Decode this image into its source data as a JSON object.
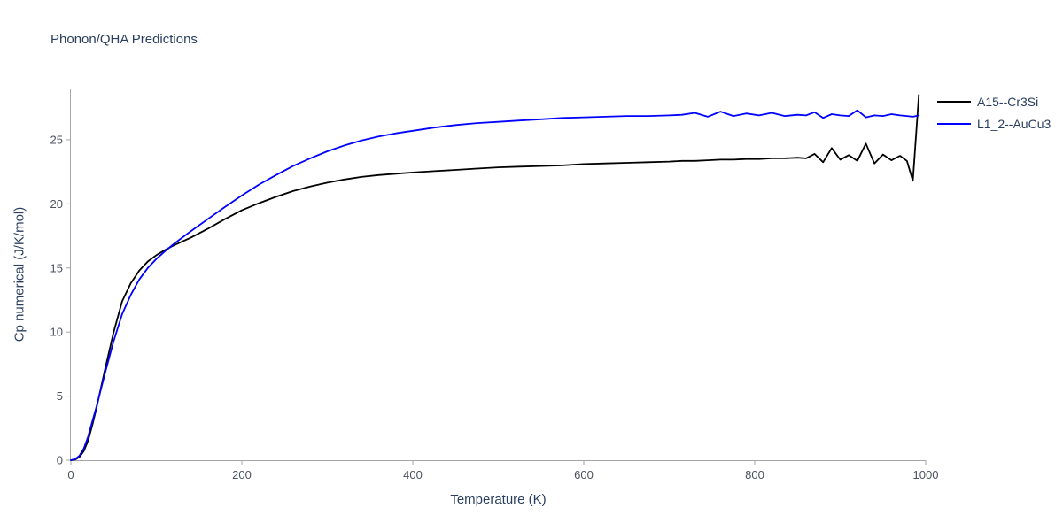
{
  "page": {
    "title": "Phonon/QHA Predictions"
  },
  "chart_data": {
    "type": "line",
    "title": "Phonon/QHA Predictions",
    "xlabel": "Temperature (K)",
    "ylabel": "Cp numerical (J/K/mol)",
    "xlim": [
      0,
      1000
    ],
    "ylim": [
      0,
      29
    ],
    "x_ticks": [
      0,
      200,
      400,
      600,
      800,
      1000
    ],
    "y_ticks": [
      0,
      5,
      10,
      15,
      20,
      25
    ],
    "grid": false,
    "legend_position": "top-right-outside",
    "colors": {
      "axis": "#a6a6a6",
      "tick_text": "#4a5260",
      "title_text": "#2a3f5f",
      "background": "#ffffff"
    },
    "series": [
      {
        "name": "A15--Cr3Si",
        "color": "#000000",
        "x": [
          0,
          5,
          10,
          15,
          20,
          25,
          30,
          35,
          40,
          50,
          60,
          70,
          80,
          90,
          100,
          110,
          120,
          130,
          140,
          160,
          180,
          200,
          220,
          240,
          260,
          280,
          300,
          320,
          340,
          360,
          380,
          400,
          425,
          450,
          475,
          500,
          525,
          550,
          575,
          600,
          625,
          650,
          675,
          700,
          715,
          730,
          745,
          760,
          775,
          790,
          805,
          820,
          835,
          850,
          860,
          870,
          880,
          890,
          900,
          910,
          920,
          930,
          940,
          950,
          960,
          970,
          978,
          985,
          992
        ],
        "y": [
          0,
          0.05,
          0.25,
          0.7,
          1.5,
          2.7,
          4.1,
          5.6,
          7.1,
          10.0,
          12.4,
          13.8,
          14.8,
          15.5,
          16.0,
          16.4,
          16.75,
          17.05,
          17.35,
          18.05,
          18.8,
          19.5,
          20.05,
          20.55,
          21.0,
          21.35,
          21.65,
          21.9,
          22.1,
          22.25,
          22.35,
          22.45,
          22.55,
          22.65,
          22.75,
          22.85,
          22.9,
          22.95,
          23.0,
          23.1,
          23.15,
          23.2,
          23.25,
          23.3,
          23.35,
          23.35,
          23.4,
          23.45,
          23.45,
          23.5,
          23.5,
          23.55,
          23.55,
          23.6,
          23.55,
          23.9,
          23.25,
          24.35,
          23.45,
          23.8,
          23.35,
          24.7,
          23.15,
          23.85,
          23.4,
          23.75,
          23.35,
          21.8,
          28.5
        ]
      },
      {
        "name": "L1_2--AuCu3",
        "color": "#0000ff",
        "x": [
          0,
          5,
          10,
          15,
          20,
          25,
          30,
          35,
          40,
          50,
          60,
          70,
          80,
          90,
          100,
          110,
          120,
          130,
          140,
          160,
          180,
          200,
          220,
          240,
          260,
          280,
          300,
          320,
          340,
          360,
          380,
          400,
          425,
          450,
          475,
          500,
          525,
          550,
          575,
          600,
          625,
          650,
          675,
          700,
          715,
          730,
          745,
          760,
          775,
          790,
          805,
          820,
          835,
          850,
          860,
          870,
          880,
          890,
          900,
          910,
          920,
          930,
          940,
          950,
          960,
          970,
          978,
          985,
          992
        ],
        "y": [
          0,
          0.08,
          0.35,
          0.9,
          1.8,
          3.0,
          4.2,
          5.5,
          6.8,
          9.3,
          11.4,
          12.9,
          14.1,
          15.0,
          15.7,
          16.3,
          16.85,
          17.35,
          17.85,
          18.8,
          19.75,
          20.65,
          21.5,
          22.25,
          22.95,
          23.55,
          24.1,
          24.55,
          24.95,
          25.25,
          25.5,
          25.7,
          25.95,
          26.15,
          26.3,
          26.4,
          26.5,
          26.6,
          26.7,
          26.75,
          26.8,
          26.85,
          26.85,
          26.9,
          26.95,
          27.1,
          26.8,
          27.2,
          26.85,
          27.05,
          26.9,
          27.1,
          26.85,
          26.95,
          26.9,
          27.15,
          26.7,
          27.0,
          26.9,
          26.85,
          27.3,
          26.75,
          26.9,
          26.85,
          27.0,
          26.9,
          26.85,
          26.8,
          26.9
        ]
      }
    ]
  }
}
